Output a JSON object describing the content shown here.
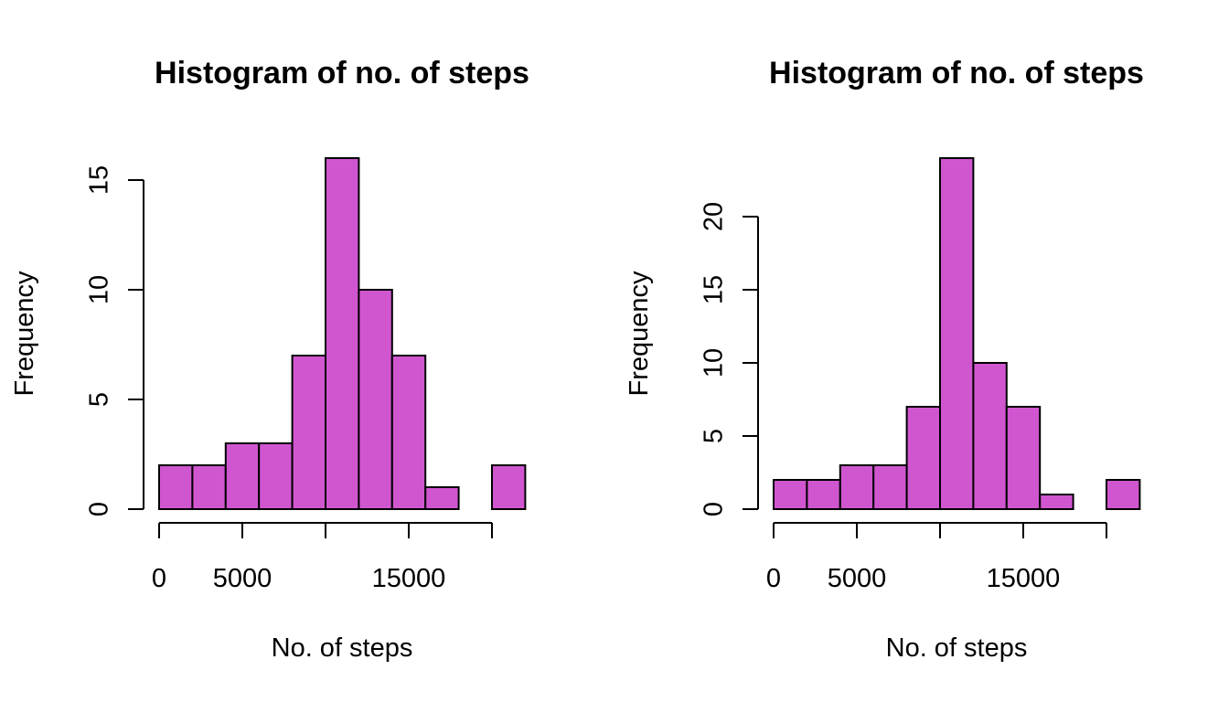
{
  "chart_data": [
    {
      "type": "bar",
      "title": "Histogram of no. of steps",
      "xlabel": "No. of steps",
      "ylabel": "Frequency",
      "bar_color": "#D056D0",
      "bin_width": 2000,
      "bins": [
        {
          "x0": 0,
          "x1": 2000,
          "count": 2
        },
        {
          "x0": 2000,
          "x1": 4000,
          "count": 2
        },
        {
          "x0": 4000,
          "x1": 6000,
          "count": 3
        },
        {
          "x0": 6000,
          "x1": 8000,
          "count": 3
        },
        {
          "x0": 8000,
          "x1": 10000,
          "count": 7
        },
        {
          "x0": 10000,
          "x1": 12000,
          "count": 16
        },
        {
          "x0": 12000,
          "x1": 14000,
          "count": 10
        },
        {
          "x0": 14000,
          "x1": 16000,
          "count": 7
        },
        {
          "x0": 16000,
          "x1": 18000,
          "count": 1
        },
        {
          "x0": 18000,
          "x1": 20000,
          "count": 0
        },
        {
          "x0": 20000,
          "x1": 22000,
          "count": 2
        }
      ],
      "xlim": [
        0,
        22000
      ],
      "ylim": [
        0,
        16
      ],
      "x_ticks": [
        0,
        5000,
        10000,
        15000,
        20000
      ],
      "x_tick_labels": [
        "0",
        "5000",
        "",
        "15000",
        ""
      ],
      "y_ticks": [
        0,
        5,
        10,
        15
      ],
      "y_tick_labels": [
        "0",
        "5",
        "10",
        "15"
      ]
    },
    {
      "type": "bar",
      "title": "Histogram of no. of steps",
      "xlabel": "No. of steps",
      "ylabel": "Frequency",
      "bar_color": "#D056D0",
      "bin_width": 2000,
      "bins": [
        {
          "x0": 0,
          "x1": 2000,
          "count": 2
        },
        {
          "x0": 2000,
          "x1": 4000,
          "count": 2
        },
        {
          "x0": 4000,
          "x1": 6000,
          "count": 3
        },
        {
          "x0": 6000,
          "x1": 8000,
          "count": 3
        },
        {
          "x0": 8000,
          "x1": 10000,
          "count": 7
        },
        {
          "x0": 10000,
          "x1": 12000,
          "count": 24
        },
        {
          "x0": 12000,
          "x1": 14000,
          "count": 10
        },
        {
          "x0": 14000,
          "x1": 16000,
          "count": 7
        },
        {
          "x0": 16000,
          "x1": 18000,
          "count": 1
        },
        {
          "x0": 18000,
          "x1": 20000,
          "count": 0
        },
        {
          "x0": 20000,
          "x1": 22000,
          "count": 2
        }
      ],
      "xlim": [
        0,
        22000
      ],
      "ylim": [
        0,
        24
      ],
      "x_ticks": [
        0,
        5000,
        10000,
        15000,
        20000
      ],
      "x_tick_labels": [
        "0",
        "5000",
        "",
        "15000",
        ""
      ],
      "y_ticks": [
        0,
        5,
        10,
        15,
        20
      ],
      "y_tick_labels": [
        "0",
        "5",
        "10",
        "15",
        "20"
      ]
    }
  ]
}
